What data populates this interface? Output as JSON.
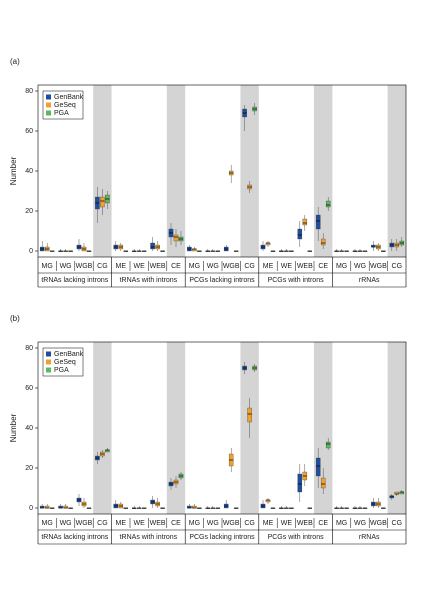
{
  "chart_data": [
    {
      "type": "box",
      "label": "(a)",
      "y_label": "Number",
      "ylim": [
        0,
        80
      ],
      "yticks": [
        0,
        20,
        40,
        60,
        80
      ],
      "groups": [
        {
          "name": "tRNAs lacking introns",
          "categories": [
            "MG",
            "WG",
            "WGB",
            "CG"
          ]
        },
        {
          "name": "tRNAs with introns",
          "categories": [
            "ME",
            "WE",
            "WEB",
            "CE"
          ]
        },
        {
          "name": "PCGs lacking introns",
          "categories": [
            "MG",
            "WG",
            "WGB",
            "CG"
          ]
        },
        {
          "name": "PCGs with introns",
          "categories": [
            "ME",
            "WE",
            "WEB",
            "CE"
          ]
        },
        {
          "name": "rRNAs",
          "categories": [
            "MG",
            "WG",
            "WGB",
            "CG"
          ]
        }
      ],
      "series": [
        {
          "name": "GenBank",
          "color": "#1f4e9c",
          "median": [
            1,
            0,
            2,
            24,
            2,
            0,
            2,
            9,
            1,
            0,
            1,
            69,
            2,
            0,
            8,
            15,
            0,
            0,
            2,
            3
          ],
          "q1": [
            0,
            0,
            1,
            21,
            1,
            0,
            1,
            7,
            0,
            0,
            0,
            67,
            1,
            0,
            6,
            11,
            0,
            0,
            2,
            2
          ],
          "q3": [
            2,
            0,
            3,
            27,
            3,
            0,
            4,
            11,
            2,
            0,
            2,
            71,
            3,
            0,
            11,
            18,
            0,
            0,
            3,
            4
          ],
          "low": [
            0,
            0,
            0,
            14,
            0,
            0,
            0,
            3,
            0,
            0,
            0,
            60,
            0,
            0,
            2,
            5,
            0,
            0,
            0,
            0
          ],
          "high": [
            5,
            1,
            6,
            32,
            5,
            1,
            7,
            14,
            3,
            1,
            3,
            73,
            5,
            1,
            15,
            22,
            1,
            1,
            5,
            6
          ]
        },
        {
          "name": "GeSeq",
          "color": "#f0a030",
          "median": [
            1,
            0,
            1,
            25,
            2,
            0,
            2,
            7,
            1,
            0,
            39,
            32,
            4,
            0,
            14,
            4,
            0,
            0,
            2,
            3
          ],
          "q1": [
            0,
            0,
            0,
            22,
            1,
            0,
            1,
            5,
            0,
            0,
            38,
            31,
            3,
            0,
            13,
            3,
            0,
            0,
            1,
            2
          ],
          "q3": [
            2,
            0,
            2,
            27,
            3,
            0,
            3,
            8,
            1,
            0,
            40,
            33,
            4,
            0,
            16,
            6,
            0,
            0,
            3,
            4
          ],
          "low": [
            0,
            0,
            0,
            18,
            0,
            0,
            0,
            2,
            0,
            0,
            34,
            29,
            2,
            0,
            10,
            1,
            0,
            0,
            0,
            0
          ],
          "high": [
            4,
            1,
            4,
            31,
            4,
            1,
            5,
            11,
            2,
            1,
            43,
            35,
            5,
            1,
            18,
            9,
            1,
            1,
            4,
            6
          ]
        },
        {
          "name": "PGA",
          "color": "#5cb85c",
          "median": [
            0,
            0,
            0,
            26,
            0,
            0,
            0,
            6,
            0,
            0,
            0,
            71,
            0,
            0,
            0,
            23,
            0,
            0,
            0,
            4
          ],
          "q1": [
            0,
            0,
            0,
            24,
            0,
            0,
            0,
            5,
            0,
            0,
            0,
            70,
            0,
            0,
            0,
            22,
            0,
            0,
            0,
            3
          ],
          "q3": [
            0,
            0,
            0,
            28,
            0,
            0,
            0,
            7,
            0,
            0,
            0,
            72,
            0,
            0,
            0,
            25,
            0,
            0,
            0,
            5
          ],
          "low": [
            0,
            0,
            0,
            21,
            0,
            0,
            0,
            3,
            0,
            0,
            0,
            68,
            0,
            0,
            0,
            20,
            0,
            0,
            0,
            2
          ],
          "high": [
            0,
            0,
            0,
            30,
            0,
            0,
            0,
            10,
            0,
            0,
            0,
            74,
            0,
            0,
            0,
            27,
            0,
            0,
            0,
            7
          ]
        }
      ]
    },
    {
      "type": "box",
      "label": "(b)",
      "y_label": "Number",
      "ylim": [
        0,
        80
      ],
      "yticks": [
        0,
        20,
        40,
        60,
        80
      ],
      "groups": [
        {
          "name": "tRNAs lacking introns",
          "categories": [
            "MG",
            "WG",
            "WGB",
            "CG"
          ]
        },
        {
          "name": "tRNAs with introns",
          "categories": [
            "ME",
            "WE",
            "WEB",
            "CE"
          ]
        },
        {
          "name": "PCGs lacking introns",
          "categories": [
            "MG",
            "WG",
            "WGB",
            "CG"
          ]
        },
        {
          "name": "PCGs with introns",
          "categories": [
            "ME",
            "WE",
            "WEB",
            "CE"
          ]
        },
        {
          "name": "rRNAs",
          "categories": [
            "MG",
            "WG",
            "WGB",
            "CG"
          ]
        }
      ],
      "series": [
        {
          "name": "GenBank",
          "color": "#1f4e9c",
          "median": [
            0,
            0,
            4,
            25,
            1,
            0,
            3,
            12,
            0,
            0,
            1,
            70,
            1,
            0,
            12,
            21,
            0,
            0,
            2,
            6
          ],
          "q1": [
            0,
            0,
            3,
            24,
            0,
            0,
            2,
            11,
            0,
            0,
            0,
            69,
            0,
            0,
            8,
            16,
            0,
            0,
            1,
            5
          ],
          "q3": [
            1,
            1,
            5,
            26,
            2,
            0,
            4,
            13,
            1,
            0,
            2,
            71,
            2,
            0,
            17,
            25,
            0,
            0,
            3,
            6
          ],
          "low": [
            0,
            0,
            1,
            22,
            0,
            0,
            0,
            9,
            0,
            0,
            0,
            67,
            0,
            0,
            3,
            10,
            0,
            0,
            0,
            4
          ],
          "high": [
            2,
            2,
            7,
            28,
            4,
            1,
            6,
            15,
            2,
            1,
            4,
            73,
            4,
            1,
            22,
            30,
            1,
            1,
            5,
            7
          ]
        },
        {
          "name": "GeSeq",
          "color": "#f0a030",
          "median": [
            0,
            0,
            2,
            27,
            1,
            0,
            2,
            13,
            0,
            0,
            24,
            47,
            4,
            0,
            16,
            12,
            0,
            0,
            2,
            7
          ],
          "q1": [
            0,
            0,
            1,
            26,
            0,
            0,
            1,
            12,
            0,
            0,
            21,
            43,
            3,
            0,
            14,
            10,
            0,
            0,
            1,
            7
          ],
          "q3": [
            1,
            1,
            3,
            28,
            2,
            0,
            3,
            14,
            1,
            0,
            27,
            50,
            4,
            0,
            18,
            15,
            0,
            0,
            3,
            8
          ],
          "low": [
            0,
            0,
            0,
            25,
            0,
            0,
            0,
            10,
            0,
            0,
            18,
            35,
            2,
            0,
            11,
            7,
            0,
            0,
            0,
            6
          ],
          "high": [
            2,
            2,
            5,
            29,
            3,
            1,
            5,
            16,
            2,
            1,
            30,
            55,
            5,
            1,
            22,
            20,
            1,
            1,
            5,
            8
          ]
        },
        {
          "name": "PGA",
          "color": "#5cb85c",
          "median": [
            0,
            0,
            0,
            29,
            0,
            0,
            0,
            16,
            0,
            0,
            0,
            70,
            0,
            0,
            0,
            32,
            0,
            0,
            0,
            8
          ],
          "q1": [
            0,
            0,
            0,
            28,
            0,
            0,
            0,
            15,
            0,
            0,
            0,
            69,
            0,
            0,
            0,
            30,
            0,
            0,
            0,
            7
          ],
          "q3": [
            0,
            0,
            0,
            29,
            0,
            0,
            0,
            17,
            0,
            0,
            0,
            71,
            0,
            0,
            0,
            33,
            0,
            0,
            0,
            8
          ],
          "low": [
            0,
            0,
            0,
            28,
            0,
            0,
            0,
            14,
            0,
            0,
            0,
            68,
            0,
            0,
            0,
            29,
            0,
            0,
            0,
            7
          ],
          "high": [
            0,
            0,
            0,
            30,
            0,
            0,
            0,
            18,
            0,
            0,
            0,
            72,
            0,
            0,
            0,
            35,
            0,
            0,
            0,
            9
          ]
        }
      ]
    }
  ]
}
